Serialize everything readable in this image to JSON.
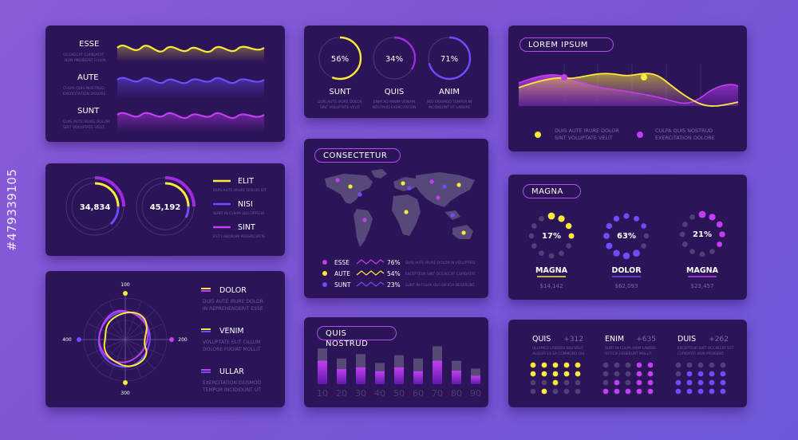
{
  "colors": {
    "panel": "#2b1457",
    "yellow": "#fde93a",
    "blue": "#6e4dff",
    "purple": "#c33df5",
    "violet": "#a12be0",
    "text": "#ffffff",
    "muted": "#6e5a9e"
  },
  "side_label": "#479339105",
  "waves": {
    "rows": [
      {
        "label": "ESSE",
        "sub1": "OCCAECAT CUPIDATAT",
        "sub2": "NON PROIDENT CULPA",
        "color": "#fde93a"
      },
      {
        "label": "AUTE",
        "sub1": "CULPA QUIS NOSTRUD",
        "sub2": "EXERCITATION DOLORE",
        "color": "#6e4dff"
      },
      {
        "label": "SUNT",
        "sub1": "DUIS AUTE IRURE DOLOR",
        "sub2": "SINT VOLUPTATE VELIT",
        "color": "#c33df5"
      }
    ]
  },
  "percent_rings": {
    "items": [
      {
        "value": "56%",
        "fraction": 0.56,
        "label": "SUNT",
        "sub1": "DUIS AUTE IRURE DOLOR",
        "sub2": "SINT VOLUPTATE VELIT",
        "color": "#fde93a"
      },
      {
        "value": "34%",
        "fraction": 0.34,
        "label": "QUIS",
        "sub1": "ENIM AD MINIM VENIAM",
        "sub2": "NOSTRUD EXERCITATION",
        "color": "#a12be0"
      },
      {
        "value": "71%",
        "fraction": 0.71,
        "label": "ANIM",
        "sub1": "SED EIUSMOD TEMPOR IN",
        "sub2": "INCIDIDUNT UT LABORE",
        "color": "#6e4dff"
      }
    ]
  },
  "area_chart": {
    "tag": "LOREM IPSUM",
    "legend": [
      {
        "color": "#fde93a",
        "line1": "DUIS AUTE IRURE DOLOR",
        "line2": "SINT VOLUPTATE VELIT"
      },
      {
        "color": "#c33df5",
        "line1": "CULPA QUIS NOSTRUD",
        "line2": "EXERCITATION DOLORE"
      }
    ]
  },
  "gauges": {
    "items": [
      {
        "value": "34,834"
      },
      {
        "value": "45,192"
      }
    ],
    "legend": [
      {
        "label": "ELIT",
        "sub": "DUIS AUTE IRURE DOLOR SIT",
        "color": "#fde93a"
      },
      {
        "label": "NISI",
        "sub": "SUNT IN CULPA QUI OFFICIA",
        "color": "#6e4dff"
      },
      {
        "label": "SINT",
        "sub": "EST LABORUM PERSPICIATIS",
        "color": "#c33df5"
      }
    ]
  },
  "world_map": {
    "tag": "CONSECTETUR",
    "legend": [
      {
        "label": "ESSE",
        "value": "76%",
        "color": "#c33df5",
        "desc": "DUIS AUTE IRURE DOLOR IN VOLUPTATE"
      },
      {
        "label": "AUTE",
        "value": "54%",
        "color": "#fde93a",
        "desc": "EXCEPTEUR SINT OCCAECAT CUPIDATAT"
      },
      {
        "label": "SUNT",
        "value": "23%",
        "color": "#6e4dff",
        "desc": "SUNT IN CULPA QUI OFFICIA DESERUNT"
      }
    ]
  },
  "dot_rings": {
    "tag": "MAGNA",
    "items": [
      {
        "value": "17%",
        "label": "MAGNA",
        "amount": "$14,142",
        "color": "#fde93a"
      },
      {
        "value": "63%",
        "label": "DOLOR",
        "amount": "$62,093",
        "color": "#6e4dff"
      },
      {
        "value": "21%",
        "label": "MAGNA",
        "amount": "$23,457",
        "color": "#c33df5"
      }
    ]
  },
  "radar": {
    "ticks": {
      "top": "100",
      "right": "200",
      "bottom": "300",
      "left": "400"
    },
    "legend": [
      {
        "label": "DOLOR",
        "line1": "DUIS AUTE IRURE DOLOR",
        "line2": "IN REPREHENDERIT ESSE"
      },
      {
        "label": "VENIM",
        "line1": "VOLUPTATE ELIT CILLUM",
        "line2": "DOLORE FUGIAT MOLLIT"
      },
      {
        "label": "ULLAR",
        "line1": "EXERCITATION EIUSMOD",
        "line2": "TEMPOR INCIDIDUNT UT"
      }
    ]
  },
  "bar_chart": {
    "tag": "QUIS NOSTRUD",
    "chart_data": {
      "type": "bar",
      "categories": [
        "10",
        "20",
        "30",
        "40",
        "50",
        "60",
        "70",
        "80",
        "90"
      ],
      "series": [
        {
          "values": [
            64,
            46,
            54,
            38,
            52,
            46,
            68,
            42,
            28
          ]
        },
        {
          "values": [
            42,
            27,
            30,
            23,
            30,
            23,
            42,
            24,
            15
          ]
        }
      ]
    }
  },
  "dot_matrix": {
    "items": [
      {
        "label": "QUIS",
        "delta": "+312",
        "line1": "ULLAMCO LABORIS NISI VELIT",
        "line2": "ALIQUIP EX EA COMMODO QUI",
        "color": "#fde93a",
        "filled": 11
      },
      {
        "label": "ENIM",
        "delta": "+635",
        "line1": "SUNT IN CULPA ANIM LABORE",
        "line2": "OFFICIA DESERUNT MOLLIT",
        "color": "#c33df5",
        "filled": 12
      },
      {
        "label": "DUIS",
        "delta": "+262",
        "line1": "EXCEPTEUR SINT OCCAECAT EST",
        "line2": "CUPIDATAT NON PROIDENT",
        "color": "#6e4dff",
        "filled": 14
      }
    ]
  }
}
